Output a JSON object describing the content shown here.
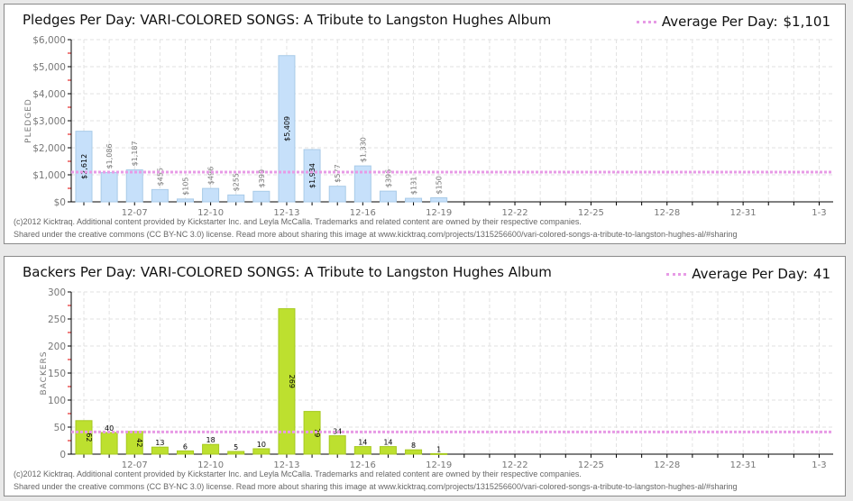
{
  "chart_data": [
    {
      "type": "bar",
      "title": "Pledges Per Day: VARI-COLORED SONGS: A Tribute to Langston Hughes Album",
      "ylabel": "PLEDGED",
      "ylim": [
        0,
        6000
      ],
      "yticks": [
        "$0",
        "$1,000",
        "$2,000",
        "$3,000",
        "$4,000",
        "$5,000",
        "$6,000"
      ],
      "xticks": [
        "12-07",
        "12-10",
        "12-13",
        "12-16",
        "12-19",
        "12-22",
        "12-25",
        "12-28",
        "12-31",
        "1-3"
      ],
      "values": [
        2612,
        1086,
        1187,
        455,
        105,
        496,
        255,
        390,
        5409,
        1934,
        577,
        1330,
        396,
        131,
        150
      ],
      "labels": [
        "$2,612",
        "$1,086",
        "$1,187",
        "$455",
        "$105",
        "$496",
        "$255",
        "$390",
        "$5,409",
        "$1,934",
        "$577",
        "$1,330",
        "$396",
        "$131",
        "$150"
      ],
      "average": 1101,
      "legend": "Average Per Day:",
      "average_label": "$1,101",
      "color": "#c6e0fa",
      "stroke": "#a9cbe8"
    },
    {
      "type": "bar",
      "title": "Backers Per Day: VARI-COLORED SONGS: A Tribute to Langston Hughes Album",
      "ylabel": "BACKERS",
      "ylim": [
        0,
        300
      ],
      "yticks": [
        "0",
        "50",
        "100",
        "150",
        "200",
        "250",
        "300"
      ],
      "xticks": [
        "12-07",
        "12-10",
        "12-13",
        "12-16",
        "12-19",
        "12-22",
        "12-25",
        "12-28",
        "12-31",
        "1-3"
      ],
      "values": [
        62,
        40,
        42,
        13,
        6,
        18,
        5,
        10,
        269,
        79,
        34,
        14,
        14,
        8,
        1
      ],
      "labels": [
        "62",
        "40",
        "42",
        "13",
        "6",
        "18",
        "5",
        "10",
        "269",
        "79",
        "34",
        "14",
        "14",
        "8",
        "1"
      ],
      "average": 41,
      "legend": "Average Per Day:",
      "average_label": "41",
      "color": "#bde02f",
      "stroke": "#a6c91f"
    }
  ],
  "footer": {
    "line1": "(c)2012 Kicktraq. Additional content provided by Kickstarter Inc. and Leyla McCalla. Trademarks and related content are owned by their respective companies.",
    "line2": "Shared under the creative commons (CC BY-NC 3.0) license. Read more about sharing this image at www.kicktraq.com/projects/1315256600/vari-colored-songs-a-tribute-to-langston-hughes-al/#sharing"
  }
}
